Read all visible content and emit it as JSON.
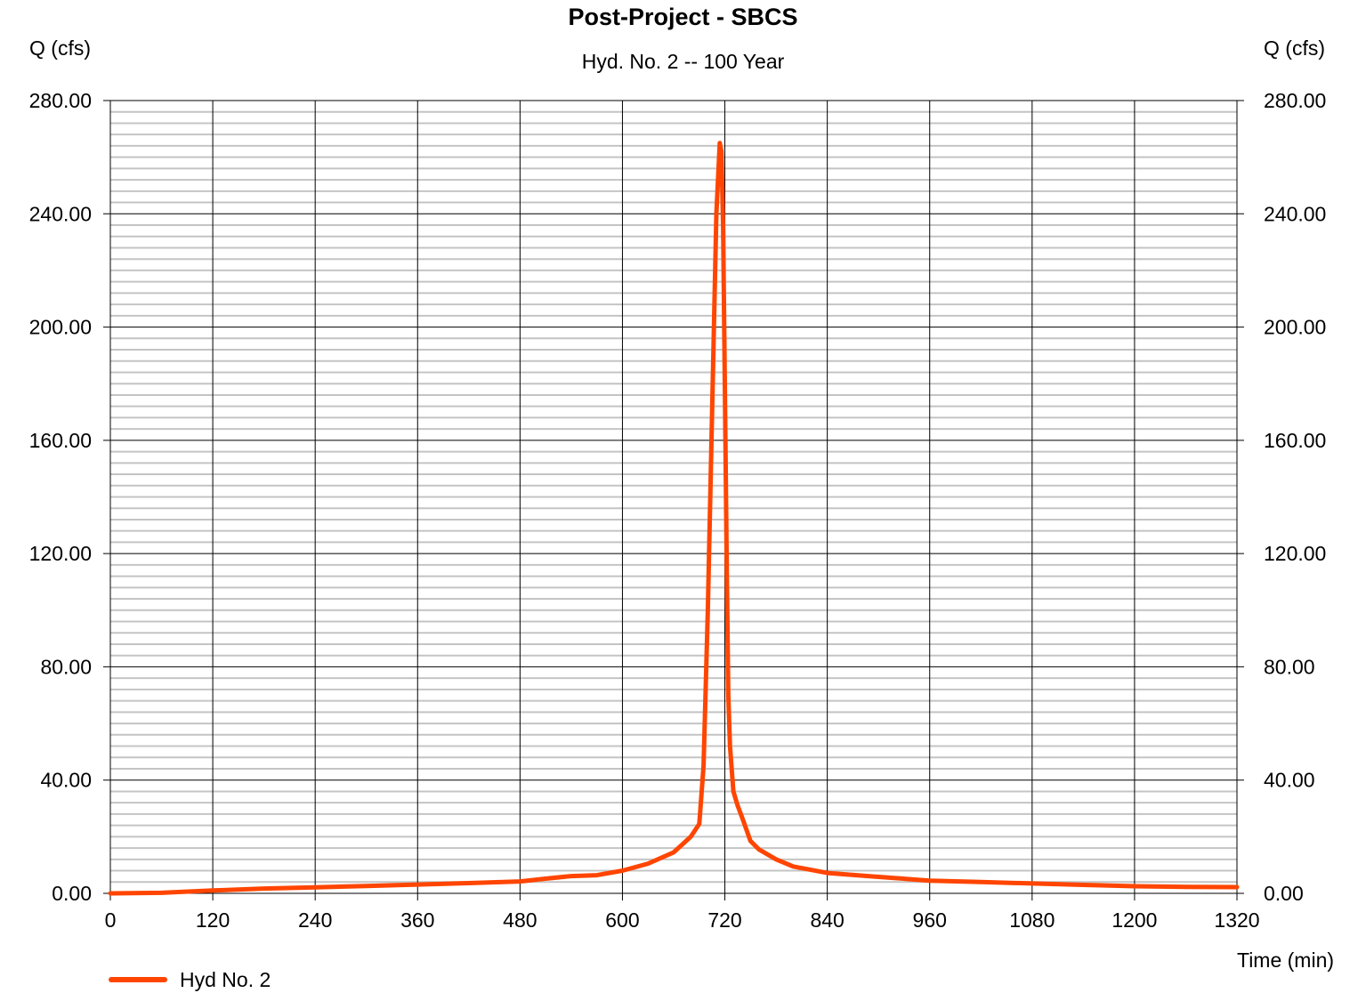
{
  "chart_data": {
    "type": "line",
    "title": "Post-Project - SBCS",
    "subtitle": "Hyd. No. 2 -- 100 Year",
    "ylabel_left": "Q (cfs)",
    "ylabel_right": "Q (cfs)",
    "xlabel": "Time (min)",
    "xlim": [
      0,
      1320
    ],
    "ylim": [
      0,
      280
    ],
    "x_ticks": [
      0,
      120,
      240,
      360,
      480,
      600,
      720,
      840,
      960,
      1080,
      1200,
      1320
    ],
    "y_ticks": [
      "0.00",
      "40.00",
      "80.00",
      "120.00",
      "160.00",
      "200.00",
      "240.00",
      "280.00"
    ],
    "y_minor_step": 4,
    "grid": true,
    "legend_position": "bottom-left",
    "series": [
      {
        "name": "Hyd No. 2",
        "color": "#ff4500",
        "x": [
          0,
          60,
          120,
          180,
          240,
          300,
          360,
          420,
          480,
          510,
          540,
          570,
          600,
          630,
          660,
          680,
          690,
          695,
          700,
          705,
          710,
          714,
          716,
          718,
          720,
          722,
          724,
          726,
          730,
          735,
          740,
          750,
          760,
          780,
          800,
          840,
          900,
          960,
          1020,
          1080,
          1140,
          1200,
          1260,
          1320
        ],
        "values": [
          0.0,
          0.2,
          1.0,
          1.7,
          2.1,
          2.6,
          3.1,
          3.6,
          4.2,
          5.2,
          6.1,
          6.4,
          8.0,
          10.5,
          14.5,
          20.0,
          24.5,
          45.0,
          100.0,
          170.0,
          240.0,
          265.0,
          262.0,
          235.0,
          180.0,
          120.0,
          70.0,
          52.0,
          36.0,
          31.0,
          27.0,
          18.5,
          15.5,
          12.0,
          9.5,
          7.2,
          5.8,
          4.5,
          4.0,
          3.5,
          3.0,
          2.5,
          2.3,
          2.2
        ]
      }
    ]
  }
}
